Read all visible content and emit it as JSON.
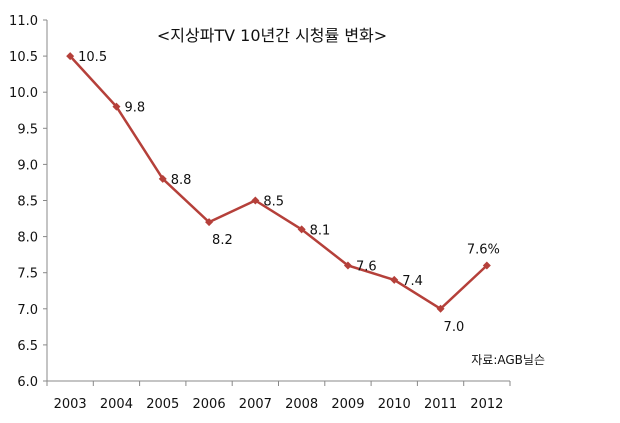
{
  "chart_data": {
    "type": "line",
    "title": "<지상파TV 10년간 시청률 변화>",
    "source": "자료:AGB닐슨",
    "categories": [
      "2003",
      "2004",
      "2005",
      "2006",
      "2007",
      "2008",
      "2009",
      "2010",
      "2011",
      "2012"
    ],
    "series": [
      {
        "name": "시청률",
        "values": [
          10.5,
          9.8,
          8.8,
          8.2,
          8.5,
          8.1,
          7.6,
          7.4,
          7.0,
          7.6
        ],
        "color": "#b5403a"
      }
    ],
    "data_labels": [
      "10.5",
      "9.8",
      "8.8",
      "8.2",
      "8.5",
      "8.1",
      "7.6",
      "7.4",
      "7.0",
      "7.6%"
    ],
    "ylim": [
      6.0,
      11.0
    ],
    "yticks": [
      "6.0",
      "6.5",
      "7.0",
      "7.5",
      "8.0",
      "8.5",
      "9.0",
      "9.5",
      "10.0",
      "10.5",
      "11.0"
    ],
    "xlabel": "",
    "ylabel": "",
    "grid": false,
    "legend": "none"
  }
}
